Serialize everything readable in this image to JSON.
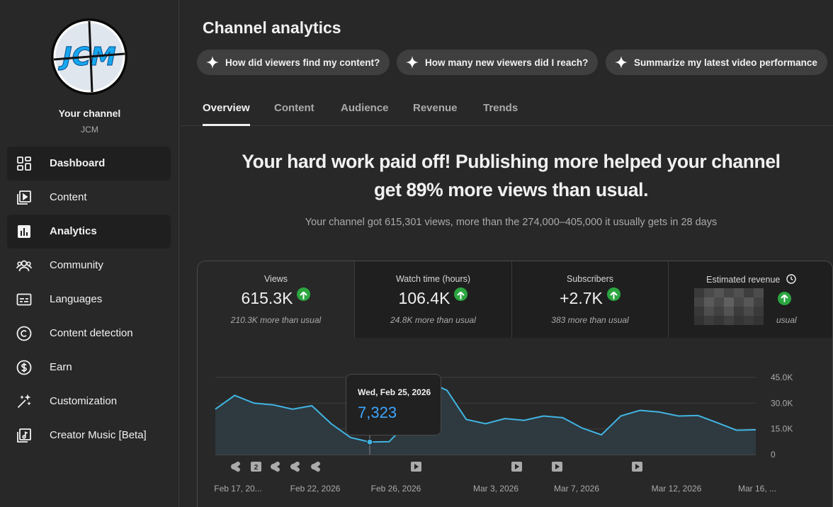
{
  "sidebar": {
    "channel_title": "Your channel",
    "channel_handle": "JCM",
    "avatar_text": "JCM",
    "items": [
      {
        "label": "Dashboard",
        "icon": "dashboard-icon",
        "active": true
      },
      {
        "label": "Content",
        "icon": "content-icon",
        "active": false
      },
      {
        "label": "Analytics",
        "icon": "analytics-icon",
        "active": true
      },
      {
        "label": "Community",
        "icon": "community-icon",
        "active": false
      },
      {
        "label": "Languages",
        "icon": "languages-icon",
        "active": false
      },
      {
        "label": "Content detection",
        "icon": "copyright-icon",
        "active": false
      },
      {
        "label": "Earn",
        "icon": "dollar-icon",
        "active": false
      },
      {
        "label": "Customization",
        "icon": "magic-wand-icon",
        "active": false
      },
      {
        "label": "Creator Music [Beta]",
        "icon": "music-icon",
        "active": false
      }
    ]
  },
  "main": {
    "title": "Channel analytics",
    "chips": [
      "How did viewers find my content?",
      "How many new viewers did I reach?",
      "Summarize my latest video performance"
    ],
    "tabs": [
      "Overview",
      "Content",
      "Audience",
      "Revenue",
      "Trends"
    ],
    "active_tab": "Overview",
    "headline_line1": "Your hard work paid off! Publishing more helped your channel",
    "headline_line2": "get 89% more views than usual.",
    "subline": "Your channel got 615,301 views, more than the 274,000–405,000 it usually gets in 28 days"
  },
  "stats": [
    {
      "label": "Views",
      "value": "615.3K",
      "note": "210.3K more than usual",
      "trend": "up"
    },
    {
      "label": "Watch time (hours)",
      "value": "106.4K",
      "note": "24.8K more than usual",
      "trend": "up"
    },
    {
      "label": "Subscribers",
      "value": "+2.7K",
      "note": "383 more than usual",
      "trend": "up"
    },
    {
      "label": "Estimated revenue",
      "value": "",
      "note": "usual",
      "trend": "up",
      "redacted": true,
      "icon": "clock-icon"
    }
  ],
  "tooltip": {
    "date": "Wed, Feb 25, 2026",
    "value": "7,323"
  },
  "colors": {
    "accent": "#3ea6ff",
    "up": "#2ba640",
    "line": "#41b4e1"
  },
  "chart_data": {
    "type": "area",
    "x_tick_labels": [
      "Feb 17, 20...",
      "Feb 22, 2026",
      "Feb 26, 2026",
      "Mar 3, 2026",
      "Mar 7, 2026",
      "Mar 12, 2026",
      "Mar 16, ..."
    ],
    "y_tick_labels": [
      "45.0K",
      "30.0K",
      "15.0K",
      "0"
    ],
    "ylim": [
      0,
      45000
    ],
    "x": [
      "Feb 17",
      "Feb 18",
      "Feb 19",
      "Feb 20",
      "Feb 21",
      "Feb 22",
      "Feb 23",
      "Feb 24",
      "Feb 25",
      "Feb 26",
      "Feb 27",
      "Feb 28",
      "Mar 1",
      "Mar 2",
      "Mar 3",
      "Mar 4",
      "Mar 5",
      "Mar 6",
      "Mar 7",
      "Mar 8",
      "Mar 9",
      "Mar 10",
      "Mar 11",
      "Mar 12",
      "Mar 13",
      "Mar 14",
      "Mar 15",
      "Mar 16",
      "Mar 17"
    ],
    "series": [
      {
        "values": [
          26500,
          34500,
          30000,
          29000,
          26500,
          28500,
          18000,
          10000,
          7323,
          7500,
          19000,
          42500,
          37500,
          20500,
          18000,
          21000,
          20000,
          22500,
          21500,
          15500,
          11500,
          22500,
          25800,
          24800,
          22500,
          22800,
          18600,
          14200,
          14500
        ]
      }
    ],
    "markers": [
      "shorts",
      "2",
      "shorts",
      "shorts",
      "shorts",
      "video",
      "video",
      "video",
      "video"
    ],
    "highlight_index": 8,
    "grid": true
  }
}
